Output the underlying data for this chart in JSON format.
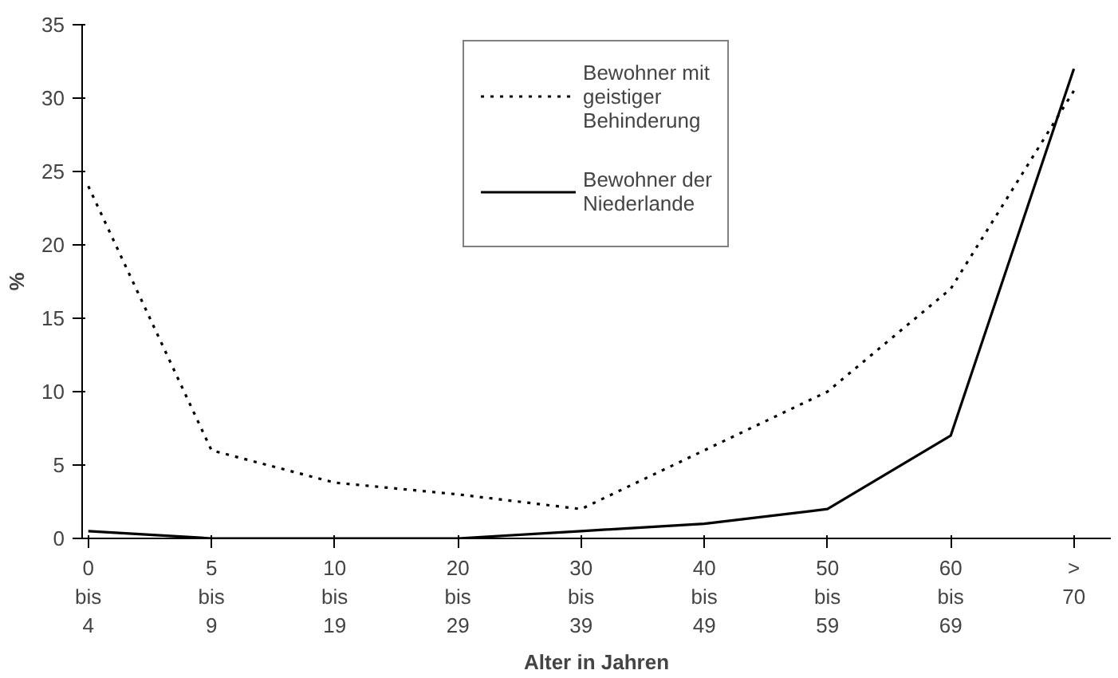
{
  "chart_data": {
    "type": "line",
    "xlabel": "Alter in Jahren",
    "ylabel": "%",
    "categories": [
      "0\nbis\n4",
      "5\nbis\n9",
      "10\nbis\n19",
      "20\nbis\n29",
      "30\nbis\n39",
      "40\nbis\n49",
      "50\nbis\n59",
      "60\nbis\n69",
      ">\n70"
    ],
    "series": [
      {
        "name": "Bewohner mit\ngeistiger\nBehinderung",
        "color": "#000000",
        "line_style": "dotted",
        "values": [
          24,
          6,
          3.8,
          3,
          2,
          6,
          10,
          17,
          30.5
        ]
      },
      {
        "name": "Bewohner der\nNiederlande",
        "color": "#000000",
        "line_style": "solid",
        "values": [
          0.5,
          0,
          0,
          0,
          0.5,
          1,
          2,
          7,
          32
        ]
      }
    ],
    "ylim": [
      0,
      35
    ],
    "yticks": [
      0,
      5,
      10,
      15,
      20,
      25,
      30,
      35
    ],
    "grid": false,
    "legend": "top",
    "marker": "none"
  }
}
